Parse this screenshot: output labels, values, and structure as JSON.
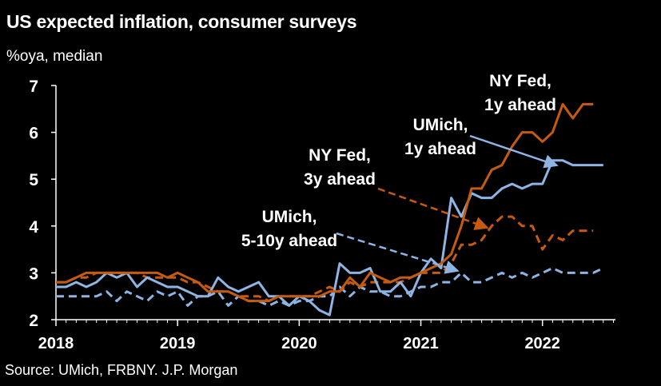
{
  "header": {
    "title": "US expected inflation, consumer surveys",
    "subtitle": "%oya, median"
  },
  "footer": {
    "source": "Source: UMich, FRBNY. J.P. Morgan"
  },
  "chart_data": {
    "type": "line",
    "title": "US expected inflation, consumer surveys",
    "ylabel": "%oya, median",
    "xlabel": "",
    "ylim": [
      2,
      7
    ],
    "yticks": [
      2,
      3,
      4,
      5,
      6,
      7
    ],
    "xlim": [
      2018.0,
      2022.6
    ],
    "xticks": [
      2018,
      2019,
      2020,
      2021,
      2022
    ],
    "grid": false,
    "colors": {
      "umich_1y": "#8EB4E3",
      "umich_5_10y": "#8EB4E3",
      "nyfed_1y": "#C55A11",
      "nyfed_3y": "#C55A11"
    },
    "series": [
      {
        "name": "UMich, 1y ahead",
        "label_lines": [
          "UMich,",
          "1y ahead"
        ],
        "style": "solid",
        "color": "#8EB4E3",
        "x": [
          2018.0,
          2018.083,
          2018.167,
          2018.25,
          2018.333,
          2018.417,
          2018.5,
          2018.583,
          2018.667,
          2018.75,
          2018.833,
          2018.917,
          2019.0,
          2019.083,
          2019.167,
          2019.25,
          2019.333,
          2019.417,
          2019.5,
          2019.583,
          2019.667,
          2019.75,
          2019.833,
          2019.917,
          2020.0,
          2020.083,
          2020.167,
          2020.25,
          2020.333,
          2020.417,
          2020.5,
          2020.583,
          2020.667,
          2020.75,
          2020.833,
          2020.917,
          2021.0,
          2021.083,
          2021.167,
          2021.25,
          2021.333,
          2021.417,
          2021.5,
          2021.583,
          2021.667,
          2021.75,
          2021.833,
          2021.917,
          2022.0,
          2022.083,
          2022.167,
          2022.25,
          2022.333,
          2022.417,
          2022.5
        ],
        "values": [
          2.7,
          2.7,
          2.8,
          2.7,
          2.8,
          3.0,
          2.9,
          3.0,
          2.7,
          2.9,
          2.8,
          2.7,
          2.7,
          2.6,
          2.5,
          2.5,
          2.9,
          2.7,
          2.6,
          2.7,
          2.8,
          2.5,
          2.5,
          2.3,
          2.5,
          2.4,
          2.2,
          2.1,
          3.2,
          3.0,
          3.0,
          3.1,
          2.6,
          2.6,
          2.8,
          2.5,
          3.0,
          3.3,
          3.1,
          4.6,
          4.2,
          4.7,
          4.6,
          4.6,
          4.8,
          4.9,
          4.8,
          4.9,
          4.9,
          5.4,
          5.4,
          5.3,
          5.3,
          5.3,
          5.3
        ]
      },
      {
        "name": "UMich, 5-10y ahead",
        "label_lines": [
          "UMich,",
          "5-10y ahead"
        ],
        "style": "dashed",
        "color": "#8EB4E3",
        "x": [
          2018.0,
          2018.083,
          2018.167,
          2018.25,
          2018.333,
          2018.417,
          2018.5,
          2018.583,
          2018.667,
          2018.75,
          2018.833,
          2018.917,
          2019.0,
          2019.083,
          2019.167,
          2019.25,
          2019.333,
          2019.417,
          2019.5,
          2019.583,
          2019.667,
          2019.75,
          2019.833,
          2019.917,
          2020.0,
          2020.083,
          2020.167,
          2020.25,
          2020.333,
          2020.417,
          2020.5,
          2020.583,
          2020.667,
          2020.75,
          2020.833,
          2020.917,
          2021.0,
          2021.083,
          2021.167,
          2021.25,
          2021.333,
          2021.417,
          2021.5,
          2021.583,
          2021.667,
          2021.75,
          2021.833,
          2021.917,
          2022.0,
          2022.083,
          2022.167,
          2022.25,
          2022.333,
          2022.417,
          2022.5
        ],
        "values": [
          2.5,
          2.5,
          2.5,
          2.5,
          2.5,
          2.6,
          2.4,
          2.6,
          2.5,
          2.4,
          2.6,
          2.5,
          2.6,
          2.3,
          2.5,
          2.5,
          2.6,
          2.3,
          2.5,
          2.4,
          2.4,
          2.3,
          2.4,
          2.3,
          2.4,
          2.4,
          2.5,
          2.5,
          2.7,
          2.5,
          2.7,
          2.6,
          2.6,
          2.5,
          2.5,
          2.6,
          2.7,
          2.7,
          2.8,
          2.8,
          3.0,
          2.8,
          2.8,
          2.9,
          3.0,
          2.9,
          3.0,
          2.9,
          3.0,
          3.1,
          3.0,
          3.0,
          3.0,
          3.0,
          3.1
        ]
      },
      {
        "name": "NY Fed, 1y ahead",
        "label_lines": [
          "NY Fed,",
          "1y ahead"
        ],
        "style": "solid",
        "color": "#C55A11",
        "x": [
          2018.0,
          2018.083,
          2018.167,
          2018.25,
          2018.333,
          2018.417,
          2018.5,
          2018.583,
          2018.667,
          2018.75,
          2018.833,
          2018.917,
          2019.0,
          2019.083,
          2019.167,
          2019.25,
          2019.333,
          2019.417,
          2019.5,
          2019.583,
          2019.667,
          2019.75,
          2019.833,
          2019.917,
          2020.0,
          2020.083,
          2020.167,
          2020.25,
          2020.333,
          2020.417,
          2020.5,
          2020.583,
          2020.667,
          2020.75,
          2020.833,
          2020.917,
          2021.0,
          2021.083,
          2021.167,
          2021.25,
          2021.333,
          2021.417,
          2021.5,
          2021.583,
          2021.667,
          2021.75,
          2021.833,
          2021.917,
          2022.0,
          2022.083,
          2022.167,
          2022.25,
          2022.333,
          2022.417
        ],
        "values": [
          2.8,
          2.8,
          2.9,
          3.0,
          3.0,
          3.0,
          3.0,
          3.0,
          3.0,
          3.0,
          3.0,
          2.9,
          3.0,
          2.9,
          2.8,
          2.6,
          2.6,
          2.6,
          2.5,
          2.4,
          2.4,
          2.4,
          2.5,
          2.5,
          2.5,
          2.5,
          2.5,
          2.6,
          2.6,
          2.9,
          2.7,
          3.0,
          2.9,
          2.8,
          2.9,
          2.9,
          3.0,
          3.1,
          3.2,
          3.4,
          4.0,
          4.8,
          4.8,
          5.2,
          5.3,
          5.7,
          6.0,
          6.0,
          5.8,
          6.0,
          6.6,
          6.3,
          6.6,
          6.6
        ]
      },
      {
        "name": "NY Fed, 3y ahead",
        "label_lines": [
          "NY Fed,",
          "3y ahead"
        ],
        "style": "dashed",
        "color": "#C55A11",
        "x": [
          2018.0,
          2018.083,
          2018.167,
          2018.25,
          2018.333,
          2018.417,
          2018.5,
          2018.583,
          2018.667,
          2018.75,
          2018.833,
          2018.917,
          2019.0,
          2019.083,
          2019.167,
          2019.25,
          2019.333,
          2019.417,
          2019.5,
          2019.583,
          2019.667,
          2019.75,
          2019.833,
          2019.917,
          2020.0,
          2020.083,
          2020.167,
          2020.25,
          2020.333,
          2020.417,
          2020.5,
          2020.583,
          2020.667,
          2020.75,
          2020.833,
          2020.917,
          2021.0,
          2021.083,
          2021.167,
          2021.25,
          2021.333,
          2021.417,
          2021.5,
          2021.583,
          2021.667,
          2021.75,
          2021.833,
          2021.917,
          2022.0,
          2022.083,
          2022.167,
          2022.25,
          2022.333,
          2022.417
        ],
        "values": [
          2.8,
          2.8,
          2.9,
          2.9,
          3.0,
          3.0,
          3.0,
          3.0,
          3.0,
          2.9,
          2.9,
          2.9,
          2.9,
          2.8,
          2.8,
          2.7,
          2.6,
          2.6,
          2.5,
          2.5,
          2.5,
          2.4,
          2.5,
          2.5,
          2.5,
          2.5,
          2.6,
          2.7,
          2.6,
          2.8,
          2.7,
          2.8,
          2.8,
          2.8,
          2.8,
          2.9,
          3.0,
          3.0,
          3.0,
          3.2,
          3.6,
          3.6,
          3.7,
          4.0,
          4.2,
          4.2,
          4.0,
          4.0,
          3.5,
          3.8,
          3.7,
          3.9,
          3.9,
          3.9
        ]
      }
    ]
  }
}
